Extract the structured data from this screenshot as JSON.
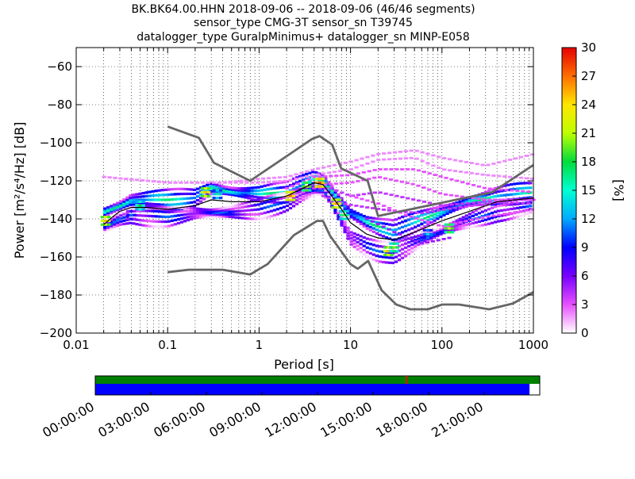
{
  "title_lines": [
    "BK.BK64.00.HHN   2018-09-06 -- 2018-09-06  (46/46 segments)",
    "sensor_type CMG-3T sensor_sn T39745",
    "datalogger_type GuralpMinimus+ datalogger_sn MINP-E058"
  ],
  "colorbar": {
    "label": "[%]",
    "ticks": [
      "0",
      "3",
      "6",
      "9",
      "12",
      "15",
      "18",
      "21",
      "24",
      "27",
      "30"
    ],
    "range": [
      0,
      30
    ]
  },
  "timeline": {
    "tick_labels": [
      "00:00:00",
      "03:00:00",
      "06:00:00",
      "09:00:00",
      "12:00:00",
      "15:00:00",
      "18:00:00",
      "21:00:00"
    ],
    "coverage_fraction": 0.977,
    "gap_marker_hour": 16.8,
    "colors": {
      "coverage": "#0000ff",
      "data": "#008000",
      "gap": "#ff0000"
    }
  },
  "chart_data": {
    "type": "heatmap",
    "title": "BK.BK64.00.HHN   2018-09-06 -- 2018-09-06  (46/46 segments)",
    "xlabel": "Period [s]",
    "ylabel": "Power [m²/s⁴/Hz] [dB]",
    "xscale": "log",
    "xlim": [
      0.01,
      1000
    ],
    "ylim": [
      -200,
      -50
    ],
    "x_tick_labels": [
      "0.01",
      "0.1",
      "1",
      "10",
      "100",
      "1000"
    ],
    "y_ticks": [
      -200,
      -180,
      -160,
      -140,
      -120,
      -100,
      -80,
      -60
    ],
    "y_tick_labels": [
      "−200",
      "−180",
      "−160",
      "−140",
      "−120",
      "−100",
      "−80",
      "−60"
    ],
    "grid": true,
    "series": [
      {
        "role": "new-high-noise-model",
        "color": "#666666",
        "x": [
          0.1,
          0.22,
          0.32,
          0.8,
          3.8,
          4.6,
          6.3,
          7.9,
          15.4,
          20,
          354.8,
          10000
        ],
        "y": [
          -91.5,
          -97.4,
          -110.5,
          -120,
          -98,
          -96.5,
          -101,
          -113.5,
          -120,
          -138.5,
          -126,
          -80
        ]
      },
      {
        "role": "new-low-noise-model",
        "color": "#666666",
        "x": [
          0.1,
          0.17,
          0.4,
          0.8,
          1.24,
          2.4,
          4.3,
          5.0,
          6.0,
          10.0,
          12.0,
          15.6,
          21.9,
          31.6,
          45,
          70,
          101,
          154,
          328,
          600,
          1000
        ],
        "y": [
          -168,
          -166.7,
          -166.7,
          -169.2,
          -163.7,
          -148.6,
          -141.1,
          -141.1,
          -149,
          -163.8,
          -166.2,
          -162.1,
          -177.5,
          -185,
          -187.5,
          -187.5,
          -185,
          -185,
          -187.5,
          -184.4,
          -178.5
        ]
      },
      {
        "role": "mean-psd",
        "color": "#000000",
        "x": [
          0.02,
          0.025,
          0.03,
          0.04,
          0.06,
          0.1,
          0.2,
          0.3,
          0.5,
          1,
          2,
          3,
          4,
          5,
          6,
          8,
          10,
          15,
          20,
          30,
          50,
          100,
          200,
          400,
          1000
        ],
        "y": [
          -143,
          -139,
          -136,
          -134,
          -134,
          -135,
          -133,
          -130,
          -131,
          -131,
          -128,
          -124,
          -121,
          -122,
          -127,
          -135,
          -142,
          -148,
          -150,
          -151,
          -147,
          -141,
          -136,
          -131,
          -129
        ]
      }
    ],
    "density_bands": [
      {
        "x": [
          0.02,
          0.03,
          0.04,
          0.1,
          0.2,
          0.3,
          0.6,
          1,
          2,
          3,
          4,
          5,
          6,
          8,
          10,
          15,
          20,
          30,
          50,
          100,
          200,
          400,
          1000
        ],
        "y": [
          -137,
          -133,
          -130,
          -130,
          -129,
          -124,
          -126,
          -127,
          -126,
          -122,
          -119,
          -120,
          -124,
          -131,
          -137,
          -142,
          -144,
          -146,
          -142,
          -136,
          -131,
          -128,
          -126
        ],
        "level": 14
      },
      {
        "x": [
          0.02,
          0.03,
          0.04,
          0.1,
          0.2,
          0.3,
          0.6,
          1,
          2,
          3,
          4,
          5,
          6,
          8,
          10,
          15,
          20,
          30,
          50,
          100,
          200,
          400,
          1000
        ],
        "y": [
          -145,
          -140,
          -138,
          -139,
          -137,
          -137,
          -136,
          -135,
          -131,
          -127,
          -125,
          -125,
          -130,
          -141,
          -150,
          -155,
          -157,
          -158,
          -153,
          -146,
          -141,
          -136,
          -133
        ],
        "level": 8
      }
    ],
    "outlier_traces": [
      {
        "x": [
          0.02,
          0.1,
          0.4,
          1,
          2,
          4,
          10,
          20,
          50,
          100,
          300,
          1000
        ],
        "y": [
          -118,
          -121,
          -121,
          -119,
          -118,
          -114,
          -110,
          -106,
          -104,
          -108,
          -112,
          -106
        ],
        "level": 2
      },
      {
        "x": [
          0.02,
          0.1,
          0.4,
          1,
          2,
          4,
          10,
          20,
          50,
          100,
          300,
          1000
        ],
        "y": [
          -118,
          -121,
          -121,
          -121,
          -120,
          -117,
          -114,
          -109,
          -108,
          -114,
          -117,
          -119
        ],
        "level": 2
      },
      {
        "x": [
          2,
          4,
          10,
          20,
          50,
          100,
          300,
          1000
        ],
        "y": [
          -124,
          -118,
          -117,
          -114,
          -114,
          -118,
          -124,
          -126
        ],
        "level": 3
      },
      {
        "x": [
          3,
          5,
          10,
          20,
          50,
          100,
          300,
          1000
        ],
        "y": [
          -126,
          -122,
          -121,
          -118,
          -122,
          -127,
          -130,
          -130
        ],
        "level": 3
      },
      {
        "x": [
          4,
          6,
          10,
          20,
          50,
          100,
          300,
          1000
        ],
        "y": [
          -124,
          -124,
          -128,
          -126,
          -130,
          -133,
          -131,
          -132
        ],
        "level": 4
      },
      {
        "x": [
          5,
          8,
          15,
          30,
          60,
          150,
          500,
          1000
        ],
        "y": [
          -128,
          -132,
          -134,
          -136,
          -137,
          -134,
          -131,
          -129
        ],
        "level": 4
      },
      {
        "x": [
          10,
          20,
          40,
          100,
          300,
          1000
        ],
        "y": [
          -128,
          -132,
          -138,
          -144,
          -139,
          -135
        ],
        "level": 3
      },
      {
        "x": [
          15,
          30,
          60,
          120
        ],
        "y": [
          -140,
          -147,
          -153,
          -150
        ],
        "level": 5
      }
    ],
    "hotspots": [
      {
        "x": 0.021,
        "y": -141,
        "level": 25
      },
      {
        "x": 0.05,
        "y": -133,
        "level": 18
      },
      {
        "x": 0.04,
        "y": -138,
        "level": 11
      },
      {
        "x": 0.26,
        "y": -126,
        "level": 25
      },
      {
        "x": 0.35,
        "y": -127,
        "level": 16
      },
      {
        "x": 2.2,
        "y": -128,
        "level": 27
      },
      {
        "x": 3.3,
        "y": -123,
        "level": 22
      },
      {
        "x": 4.6,
        "y": -121,
        "level": 28
      },
      {
        "x": 7,
        "y": -132,
        "level": 26
      },
      {
        "x": 8.5,
        "y": -138,
        "level": 19
      },
      {
        "x": 26,
        "y": -157,
        "level": 25
      },
      {
        "x": 30,
        "y": -155,
        "level": 20
      },
      {
        "x": 70,
        "y": -148,
        "level": 14
      },
      {
        "x": 120,
        "y": -145,
        "level": 22
      }
    ]
  }
}
